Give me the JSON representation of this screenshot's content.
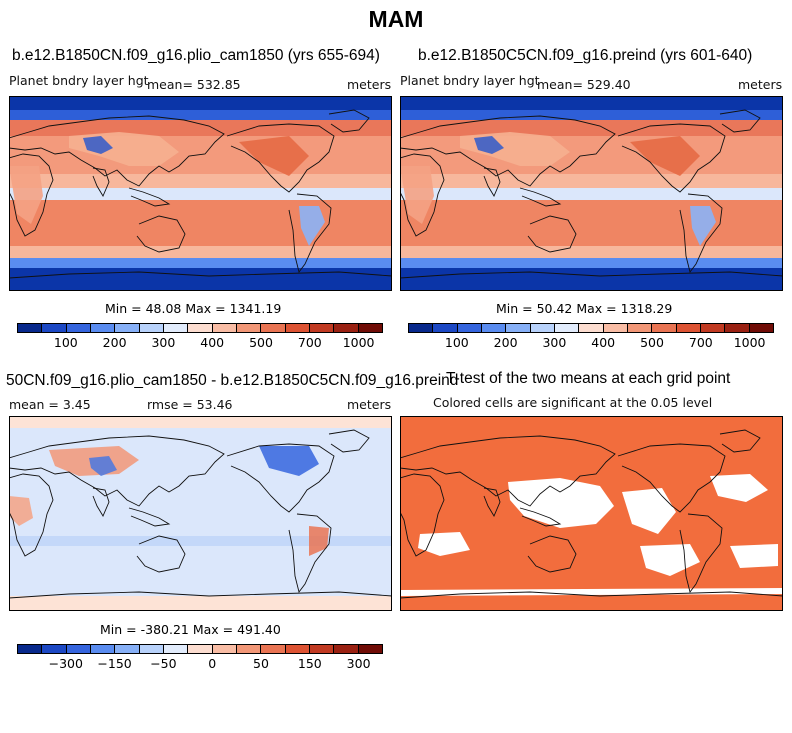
{
  "figure_title": "MAM",
  "panels": {
    "p1": {
      "title": "b.e12.B1850CN.f09_g16.plio_cam1850 (yrs 655-694)",
      "variable": "Planet bndry layer hgt",
      "mean": "mean= 532.85",
      "units": "meters",
      "minmax": "Min =  48.08 Max = 1341.19"
    },
    "p2": {
      "title": "b.e12.B1850C5CN.f09_g16.preind (yrs 601-640)",
      "variable": "Planet bndry layer hgt",
      "mean": "mean= 529.40",
      "units": "meters",
      "minmax": "Min =  50.42 Max = 1318.29"
    },
    "p3": {
      "title": "50CN.f09_g16.plio_cam1850 - b.e12.B1850C5CN.f09_g16.preind",
      "mean": "mean =   3.45",
      "rmse": "rmse =  53.46",
      "units": "meters",
      "minmax": "Min = -380.21 Max = 491.40"
    },
    "p4": {
      "title": "T-test of the two means at each grid point",
      "subtitle": "Colored cells are significant at the 0.05 level"
    }
  },
  "colorbars": {
    "abs": {
      "colors": [
        "#08298c",
        "#1c48c4",
        "#3565de",
        "#5a8cf0",
        "#87b0f7",
        "#b8d2fb",
        "#e2ecfc",
        "#fcddd0",
        "#f9bda5",
        "#f29777",
        "#e97453",
        "#dd5333",
        "#c13a22",
        "#9a2112",
        "#700c06"
      ],
      "tick_labels": [
        "100",
        "200",
        "300",
        "400",
        "500",
        "700",
        "1000"
      ]
    },
    "diff": {
      "colors": [
        "#08298c",
        "#1c48c4",
        "#3565de",
        "#5a8cf0",
        "#87b0f7",
        "#b8d2fb",
        "#e2ecfc",
        "#fcddd0",
        "#f9bda5",
        "#f29777",
        "#e97453",
        "#dd5333",
        "#c13a22",
        "#9a2112",
        "#700c06"
      ],
      "tick_labels": [
        "−300",
        "−150",
        "−50",
        "0",
        "50",
        "150",
        "300"
      ]
    }
  },
  "colors": {
    "significant": "#f26d3d",
    "land_outline": "#111111",
    "polar_high": "#0b35a8",
    "ocean_warm": "#f08560",
    "diff_neutral": "#dbe7fb"
  }
}
